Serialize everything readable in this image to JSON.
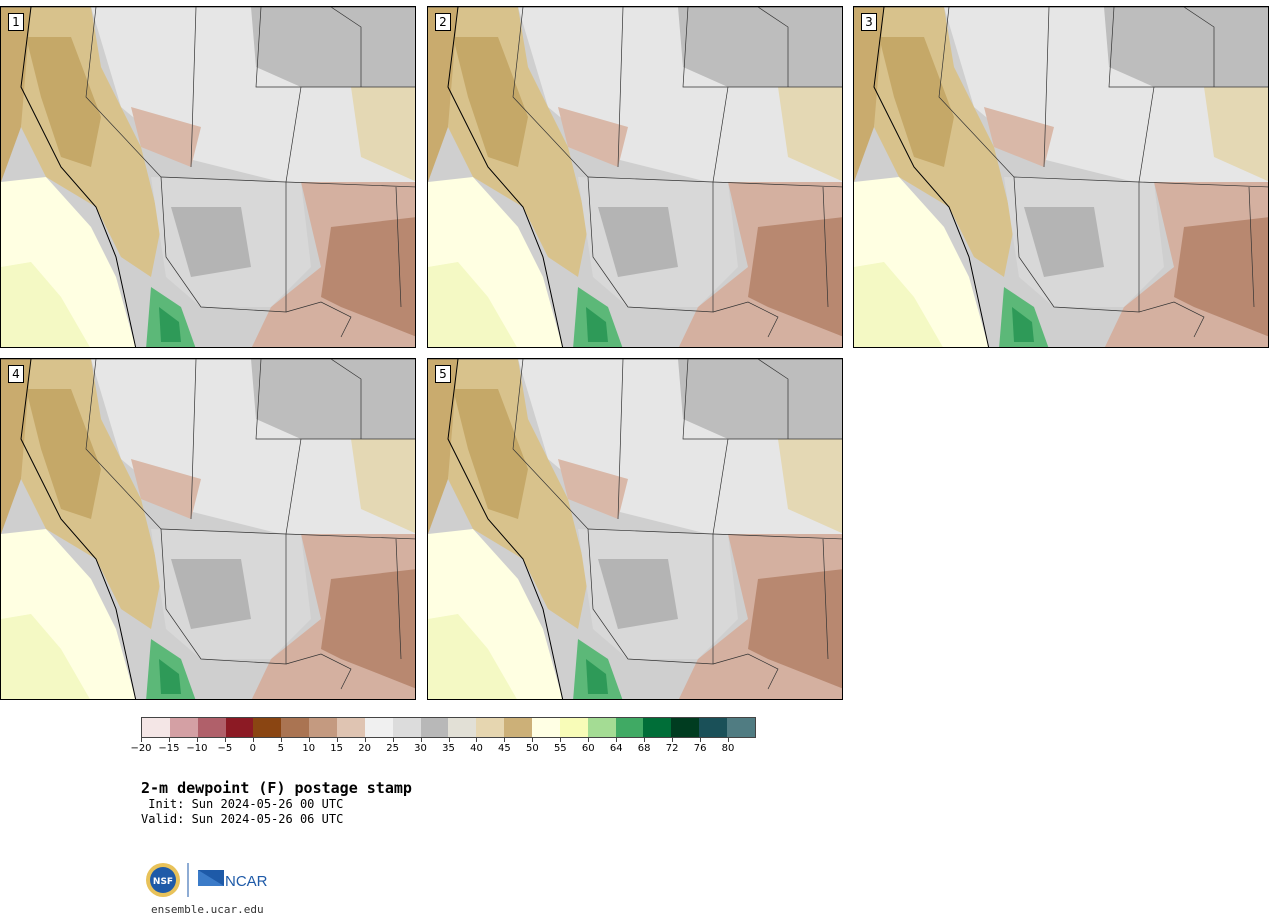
{
  "panels": [
    {
      "number": "1"
    },
    {
      "number": "2"
    },
    {
      "number": "3"
    },
    {
      "number": "4"
    },
    {
      "number": "5"
    }
  ],
  "colorbar": {
    "colors": [
      "#f4e6e6",
      "#d4a0a4",
      "#b0606a",
      "#8c1a24",
      "#8a4512",
      "#aa7452",
      "#c49a80",
      "#dfc4b2",
      "#f0f0f0",
      "#dcdcdc",
      "#b8b8b8",
      "#e2e0d6",
      "#e6d6b0",
      "#ccb078",
      "#ffffe4",
      "#f8fcb8",
      "#a4dc94",
      "#40aa64",
      "#006e38",
      "#003c20",
      "#1a5058",
      "#507c82"
    ],
    "ticks": [
      "−20",
      "−15",
      "−10",
      "−5",
      "0",
      "5",
      "10",
      "15",
      "20",
      "25",
      "30",
      "35",
      "40",
      "45",
      "50",
      "55",
      "60",
      "64",
      "68",
      "72",
      "76",
      "80"
    ]
  },
  "title": "2-m dewpoint (F) postage stamp",
  "init": " Init: Sun 2024-05-26 00 UTC",
  "valid": "Valid: Sun 2024-05-26 06 UTC",
  "logo": {
    "nsf_text": "NSF",
    "ncar_text": "NCAR"
  },
  "footer": "ensemble.ucar.edu"
}
